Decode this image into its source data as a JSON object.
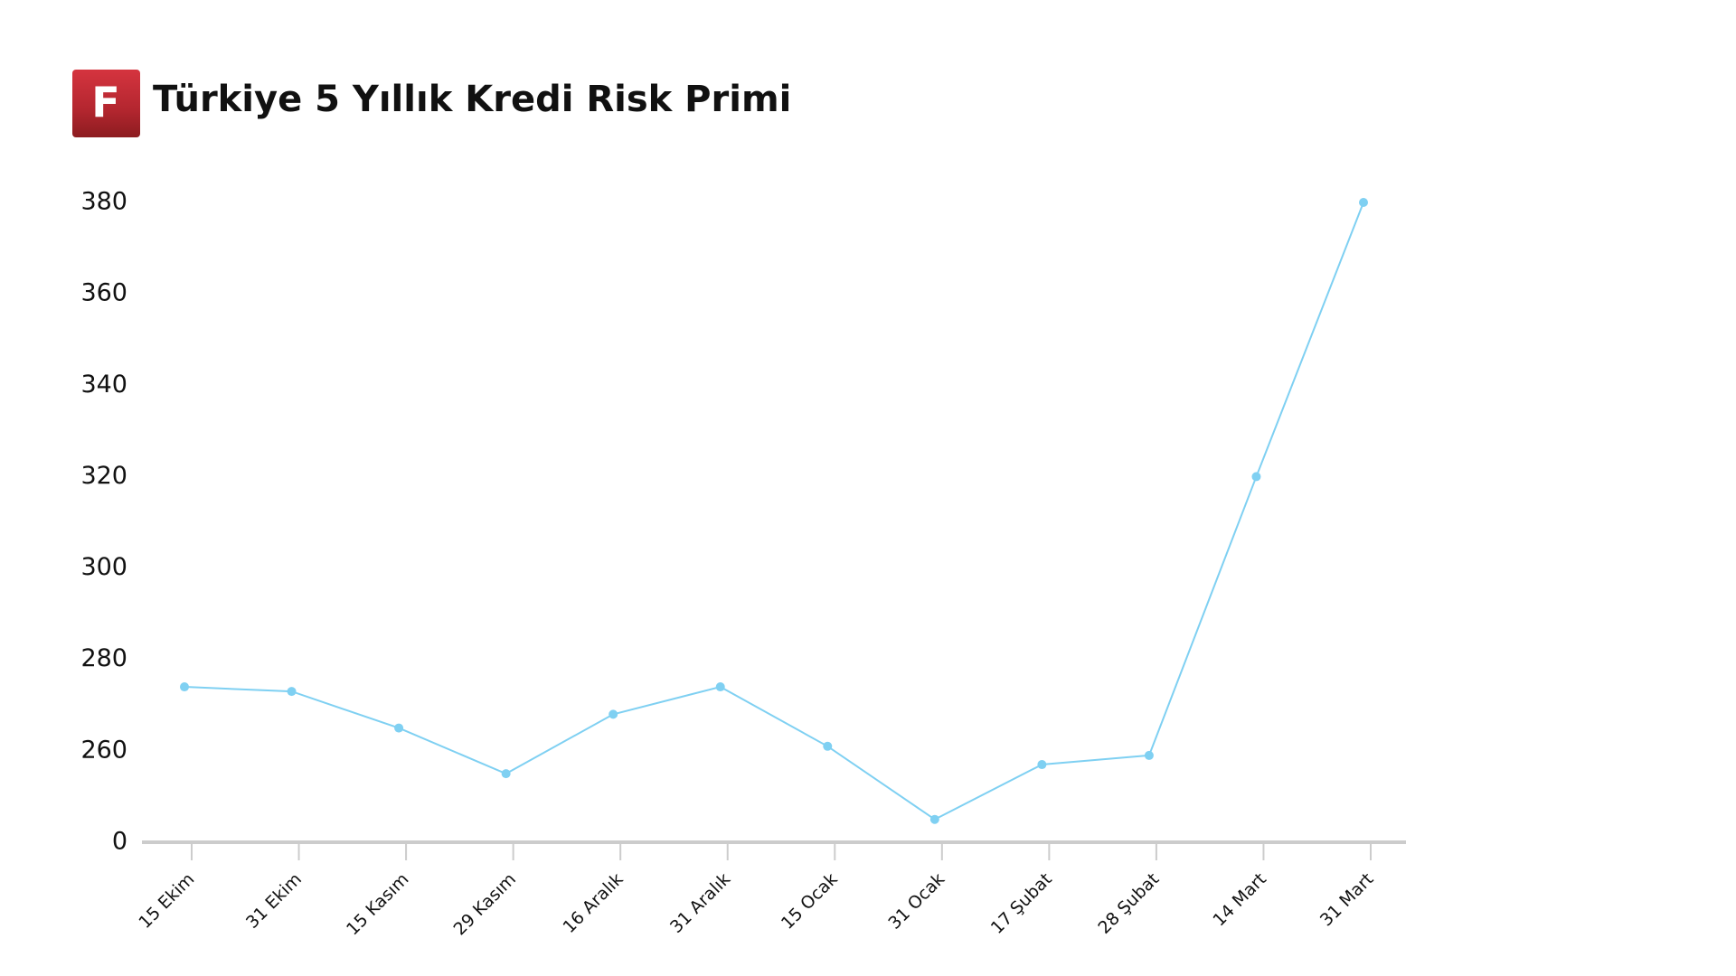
{
  "chart_data": {
    "type": "line",
    "title": "Türkiye 5 Yıllık Kredi Risk Primi",
    "categories": [
      "15 Ekim",
      "31 Ekim",
      "15 Kasım",
      "29 Kasım",
      "16 Aralık",
      "31 Aralık",
      "15 Ocak",
      "31 Ocak",
      "17 Şubat",
      "28 Şubat",
      "14 Mart",
      "31 Mart"
    ],
    "series": [
      {
        "name": "Türkiye 5 Yıllık Kredi Risk Primi",
        "color": "#7fd0f2",
        "values": [
          274,
          273,
          265,
          255,
          268,
          274,
          261,
          245,
          257,
          259,
          320,
          380
        ]
      }
    ],
    "ylim": [
      0,
      380
    ],
    "axis_break": [
      0,
      240
    ],
    "yticks": [
      0,
      260,
      280,
      300,
      320,
      340,
      360,
      380
    ],
    "grid": false
  }
}
